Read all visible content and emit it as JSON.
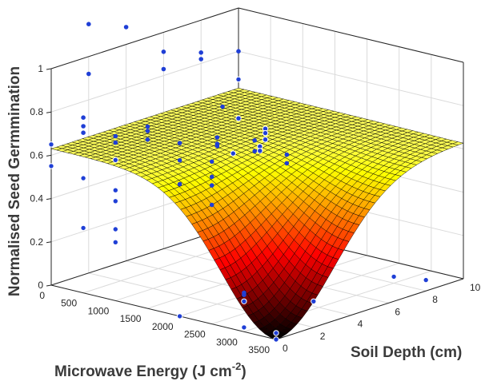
{
  "chart_data": {
    "type": "surface3d",
    "title": "",
    "xlabel": "Microwave Energy (J cm",
    "xlabel_sup": "-2",
    "xlabel_close": ")",
    "ylabel": "Soil Depth (cm)",
    "zlabel": "Normalised Seed Germmination",
    "xlim": [
      0,
      3500
    ],
    "ylim": [
      0,
      10
    ],
    "zlim": [
      0,
      1
    ],
    "xticks": [
      "0",
      "500",
      "1000",
      "1500",
      "2000",
      "2500",
      "3000",
      "3500"
    ],
    "yticks": [
      "0",
      "2",
      "4",
      "6",
      "8",
      "10"
    ],
    "zticks": [
      "0",
      "0.2",
      "0.4",
      "0.6",
      "0.8",
      "1"
    ],
    "grid": true,
    "colormap": "hot",
    "surface": {
      "description": "z = base - depth * exp(-(E-3500)^2/(2*sx^2) - D^2/(2*sy^2))",
      "base": 0.63,
      "depth": 0.63,
      "peak_x": 3500,
      "peak_y": 0,
      "sigma_x": 850,
      "sigma_y": 3.1
    },
    "points_color": "#1f3fd6",
    "points": [
      {
        "x": 0,
        "y": 0,
        "z": 0.65
      },
      {
        "x": 0,
        "y": 0,
        "z": 0.55
      },
      {
        "x": 0,
        "y": 10,
        "z": 0.8
      },
      {
        "x": 0,
        "y": 10,
        "z": 0.67
      },
      {
        "x": 0,
        "y": 10,
        "z": 0.49
      },
      {
        "x": 0,
        "y": 8,
        "z": 0.85
      },
      {
        "x": 0,
        "y": 8,
        "z": 0.82
      },
      {
        "x": 0,
        "y": 6,
        "z": 0.91
      },
      {
        "x": 0,
        "y": 6,
        "z": 0.83
      },
      {
        "x": 0,
        "y": 4,
        "z": 1.08
      },
      {
        "x": 0,
        "y": 2,
        "z": 1.15
      },
      {
        "x": 0,
        "y": 2,
        "z": 0.92
      },
      {
        "x": 500,
        "y": 0,
        "z": 0.81
      },
      {
        "x": 500,
        "y": 0,
        "z": 0.77
      },
      {
        "x": 500,
        "y": 0,
        "z": 0.74
      },
      {
        "x": 500,
        "y": 0,
        "z": 0.53
      },
      {
        "x": 500,
        "y": 0,
        "z": 0.3
      },
      {
        "x": 500,
        "y": 8,
        "z": 0.42
      },
      {
        "x": 1000,
        "y": 0,
        "z": 0.76
      },
      {
        "x": 1000,
        "y": 0,
        "z": 0.73
      },
      {
        "x": 1000,
        "y": 0,
        "z": 0.65
      },
      {
        "x": 1000,
        "y": 0,
        "z": 0.51
      },
      {
        "x": 1000,
        "y": 0,
        "z": 0.46
      },
      {
        "x": 1000,
        "y": 0,
        "z": 0.33
      },
      {
        "x": 1000,
        "y": 0,
        "z": 0.27
      },
      {
        "x": 1000,
        "y": 8,
        "z": 0.57
      },
      {
        "x": 1000,
        "y": 8,
        "z": 0.55
      },
      {
        "x": 1000,
        "y": 8,
        "z": 0.52
      },
      {
        "x": 1500,
        "y": 0,
        "z": 0.84
      },
      {
        "x": 1500,
        "y": 0,
        "z": 0.82
      },
      {
        "x": 1500,
        "y": 0,
        "z": 0.78
      },
      {
        "x": 1500,
        "y": 4,
        "z": 0.82
      },
      {
        "x": 1500,
        "y": 6,
        "z": 0.58
      },
      {
        "x": 1500,
        "y": 6,
        "z": 0.56
      },
      {
        "x": 2000,
        "y": 0,
        "z": 0.8
      },
      {
        "x": 2000,
        "y": 0,
        "z": 0.72
      },
      {
        "x": 2000,
        "y": 0,
        "z": 0.61
      },
      {
        "x": 2000,
        "y": 2,
        "z": 0.77
      },
      {
        "x": 2000,
        "y": 2,
        "z": 0.74
      },
      {
        "x": 2000,
        "y": 2,
        "z": 0.73
      },
      {
        "x": 2000,
        "y": 4,
        "z": 0.7
      },
      {
        "x": 2000,
        "y": 4,
        "z": 0.65
      },
      {
        "x": 2500,
        "y": 0,
        "z": 0.75
      },
      {
        "x": 2500,
        "y": 0,
        "z": 0.68
      },
      {
        "x": 2500,
        "y": 0,
        "z": 0.64
      },
      {
        "x": 2500,
        "y": 0,
        "z": 0.55
      },
      {
        "x": 2500,
        "y": 4,
        "z": 0.67
      },
      {
        "x": 2500,
        "y": 4,
        "z": 0.63
      },
      {
        "x": 3000,
        "y": 0,
        "z": 0.18
      },
      {
        "x": 3000,
        "y": 0,
        "z": 0.17
      },
      {
        "x": 3000,
        "y": 0,
        "z": 0.14
      },
      {
        "x": 3000,
        "y": 0,
        "z": 0.02
      },
      {
        "x": 3500,
        "y": 0,
        "z": 0.03
      },
      {
        "x": 3500,
        "y": 0,
        "z": 0.0
      },
      {
        "x": 3500,
        "y": 2,
        "z": 0.12
      },
      {
        "x": 3500,
        "y": 8,
        "z": 0.05
      },
      {
        "x": 3000,
        "y": 8,
        "z": 0.03
      },
      {
        "x": 2000,
        "y": 0,
        "z": 0.0
      }
    ]
  }
}
